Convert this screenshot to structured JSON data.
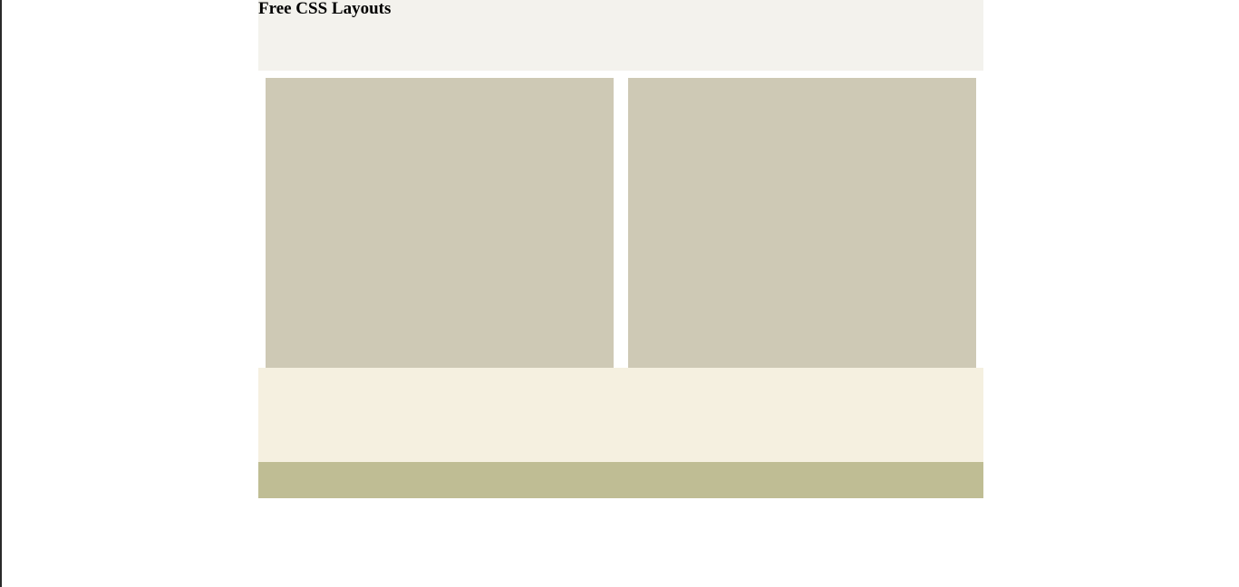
{
  "header": {
    "title": "Free CSS Layouts"
  },
  "colors": {
    "header_bg": "#f3f2ed",
    "column_bg": "#cec9b5",
    "band_bg": "#f5f0e0",
    "footer_bg": "#bfbd94"
  }
}
